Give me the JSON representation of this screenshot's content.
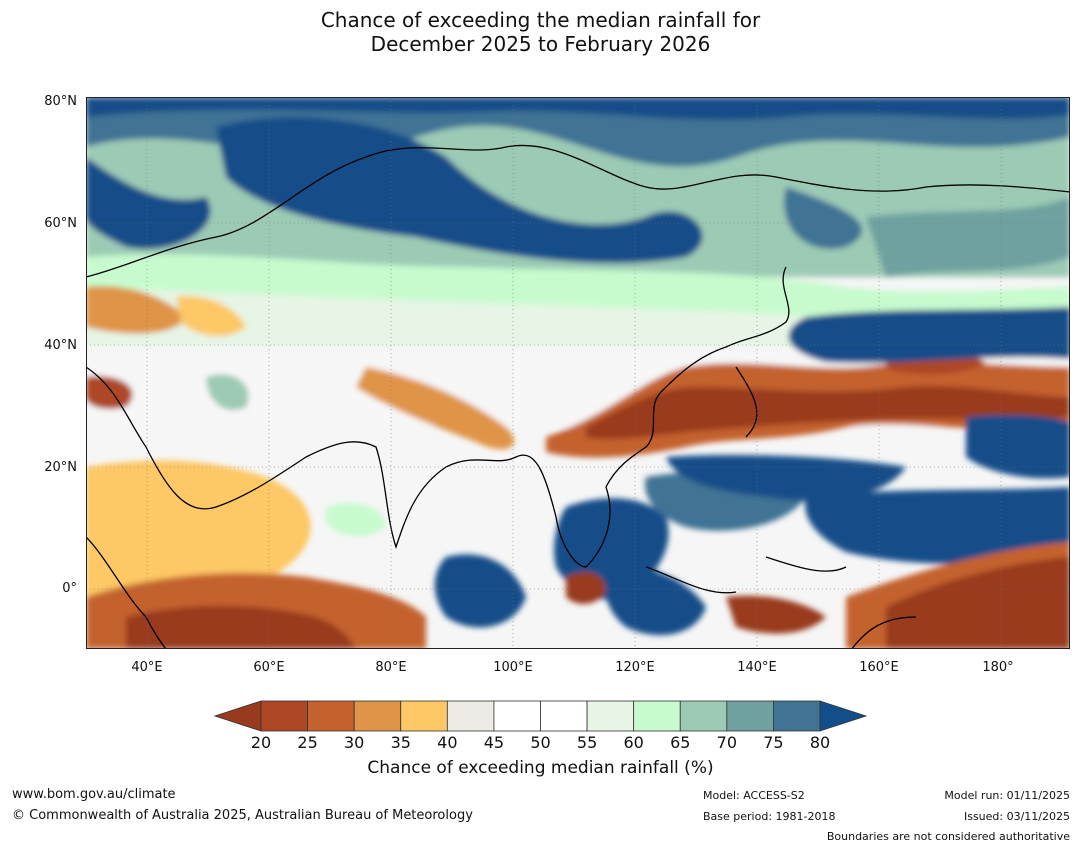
{
  "title": {
    "line1": "Chance of exceeding the median rainfall for",
    "line2": "December 2025 to February 2026"
  },
  "map": {
    "lat_labels": [
      "80°N",
      "60°N",
      "40°N",
      "20°N",
      "0°"
    ],
    "lon_labels": [
      "40°E",
      "60°E",
      "80°E",
      "100°E",
      "120°E",
      "140°E",
      "160°E",
      "180°"
    ],
    "extent": {
      "lon_min": 30,
      "lon_max": 191,
      "lat_min": -10,
      "lat_max": 80
    }
  },
  "colorbar": {
    "label": "Chance of exceeding median rainfall (%)",
    "ticks": [
      "20",
      "25",
      "30",
      "35",
      "40",
      "45",
      "50",
      "55",
      "60",
      "65",
      "70",
      "75",
      "80"
    ],
    "under_color": "#993a1e",
    "colors": [
      "#ad4725",
      "#c4622f",
      "#df9447",
      "#fdc865",
      "#edebe5",
      "#ffffff",
      "#ffffff",
      "#e6f5e5",
      "#c7fbce",
      "#9ccab5",
      "#6ea19f",
      "#417394"
    ],
    "over_color": "#124e89"
  },
  "footer": {
    "website": "www.bom.gov.au/climate",
    "copyright": "© Commonwealth of Australia 2025, Australian Bureau of Meteorology",
    "model": "Model: ACCESS-S2",
    "base_period": "Base period: 1981-2018",
    "model_run": "Model run: 01/11/2025",
    "issued": "Issued: 03/11/2025",
    "disclaimer": "Boundaries are not considered authoritative"
  }
}
